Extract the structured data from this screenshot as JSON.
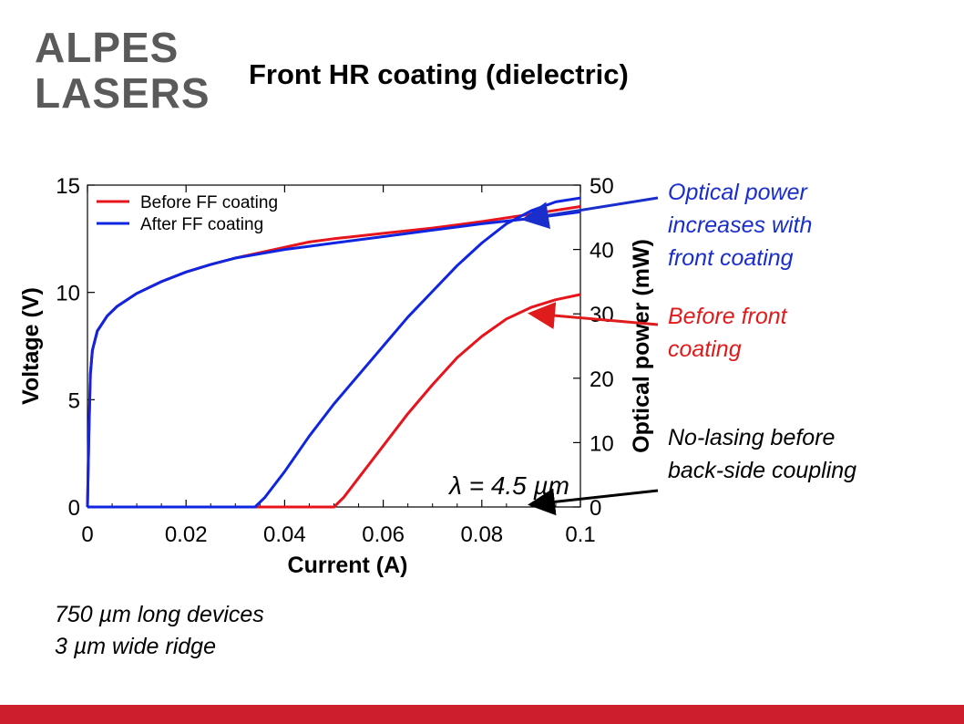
{
  "slide": {
    "title": "Front HR coating (dielectric)",
    "logo_text": [
      "ALPES",
      "LASERS"
    ],
    "footer_lines": [
      "750 µm long devices",
      "3 µm wide ridge"
    ],
    "footer_bar_color": "#cc1f2c"
  },
  "annotations": [
    {
      "text_lines": [
        "Optical power",
        "increases with",
        "front coating"
      ],
      "color": "#1a2ecc"
    },
    {
      "text_lines": [
        "Before front",
        "coating"
      ],
      "color": "#e01b1b"
    },
    {
      "text_lines": [
        "No-lasing before",
        "back-side coupling"
      ],
      "color": "#000000"
    }
  ],
  "chart_data": {
    "type": "line",
    "xlabel": "Current (A)",
    "ylabel_left": "Voltage (V)",
    "ylabel_right": "Optical power (mW)",
    "xlim": [
      0,
      0.1
    ],
    "ylim_left": [
      0,
      15
    ],
    "ylim_right": [
      0,
      50
    ],
    "x_ticks": [
      "0",
      "0.02",
      "0.04",
      "0.06",
      "0.08",
      "0.1"
    ],
    "y_left_ticks": [
      "0",
      "5",
      "10",
      "15"
    ],
    "y_right_ticks": [
      "0",
      "10",
      "20",
      "30",
      "40",
      "50"
    ],
    "legend": [
      "Before FF coating",
      "After FF coating"
    ],
    "legend_position": "top-left",
    "annotation": "λ = 4.5 µm",
    "colors": {
      "before": "#e8141c",
      "after": "#1025e0"
    },
    "series": [
      {
        "name": "Before FF coating",
        "axis": "left",
        "color": "#e8141c",
        "x": [
          0,
          0.0003,
          0.0006,
          0.001,
          0.002,
          0.004,
          0.006,
          0.01,
          0.015,
          0.02,
          0.025,
          0.03,
          0.035,
          0.04,
          0.045,
          0.05,
          0.06,
          0.07,
          0.08,
          0.09,
          0.1
        ],
        "y": [
          0,
          3.5,
          6.2,
          7.3,
          8.2,
          8.9,
          9.35,
          9.95,
          10.5,
          10.95,
          11.3,
          11.6,
          11.85,
          12.1,
          12.35,
          12.5,
          12.75,
          13.0,
          13.3,
          13.65,
          14.0
        ]
      },
      {
        "name": "After FF coating",
        "axis": "left",
        "color": "#1025e0",
        "x": [
          0,
          0.0003,
          0.0006,
          0.001,
          0.002,
          0.004,
          0.006,
          0.01,
          0.015,
          0.02,
          0.025,
          0.03,
          0.035,
          0.04,
          0.045,
          0.05,
          0.06,
          0.07,
          0.08,
          0.09,
          0.1
        ],
        "y": [
          0,
          3.5,
          6.2,
          7.3,
          8.2,
          8.9,
          9.35,
          9.95,
          10.5,
          10.95,
          11.3,
          11.6,
          11.8,
          12.0,
          12.15,
          12.3,
          12.6,
          12.9,
          13.2,
          13.45,
          13.75
        ]
      },
      {
        "name": "Before FF coating",
        "axis": "right",
        "color": "#e8141c",
        "x": [
          0,
          0.05,
          0.052,
          0.055,
          0.06,
          0.065,
          0.07,
          0.075,
          0.08,
          0.085,
          0.09,
          0.095,
          0.1
        ],
        "y": [
          0,
          0,
          1.5,
          4.5,
          9.5,
          14.5,
          19.0,
          23.2,
          26.5,
          29.2,
          31.0,
          32.2,
          33.0
        ]
      },
      {
        "name": "After FF coating",
        "axis": "right",
        "color": "#1025e0",
        "x": [
          0,
          0.034,
          0.036,
          0.04,
          0.045,
          0.05,
          0.055,
          0.06,
          0.065,
          0.07,
          0.075,
          0.08,
          0.085,
          0.09,
          0.095,
          0.1
        ],
        "y": [
          0,
          0,
          1.5,
          5.5,
          11.0,
          16.0,
          20.5,
          25.0,
          29.5,
          33.5,
          37.5,
          41.0,
          44.0,
          46.0,
          47.4,
          48.0
        ]
      }
    ]
  }
}
